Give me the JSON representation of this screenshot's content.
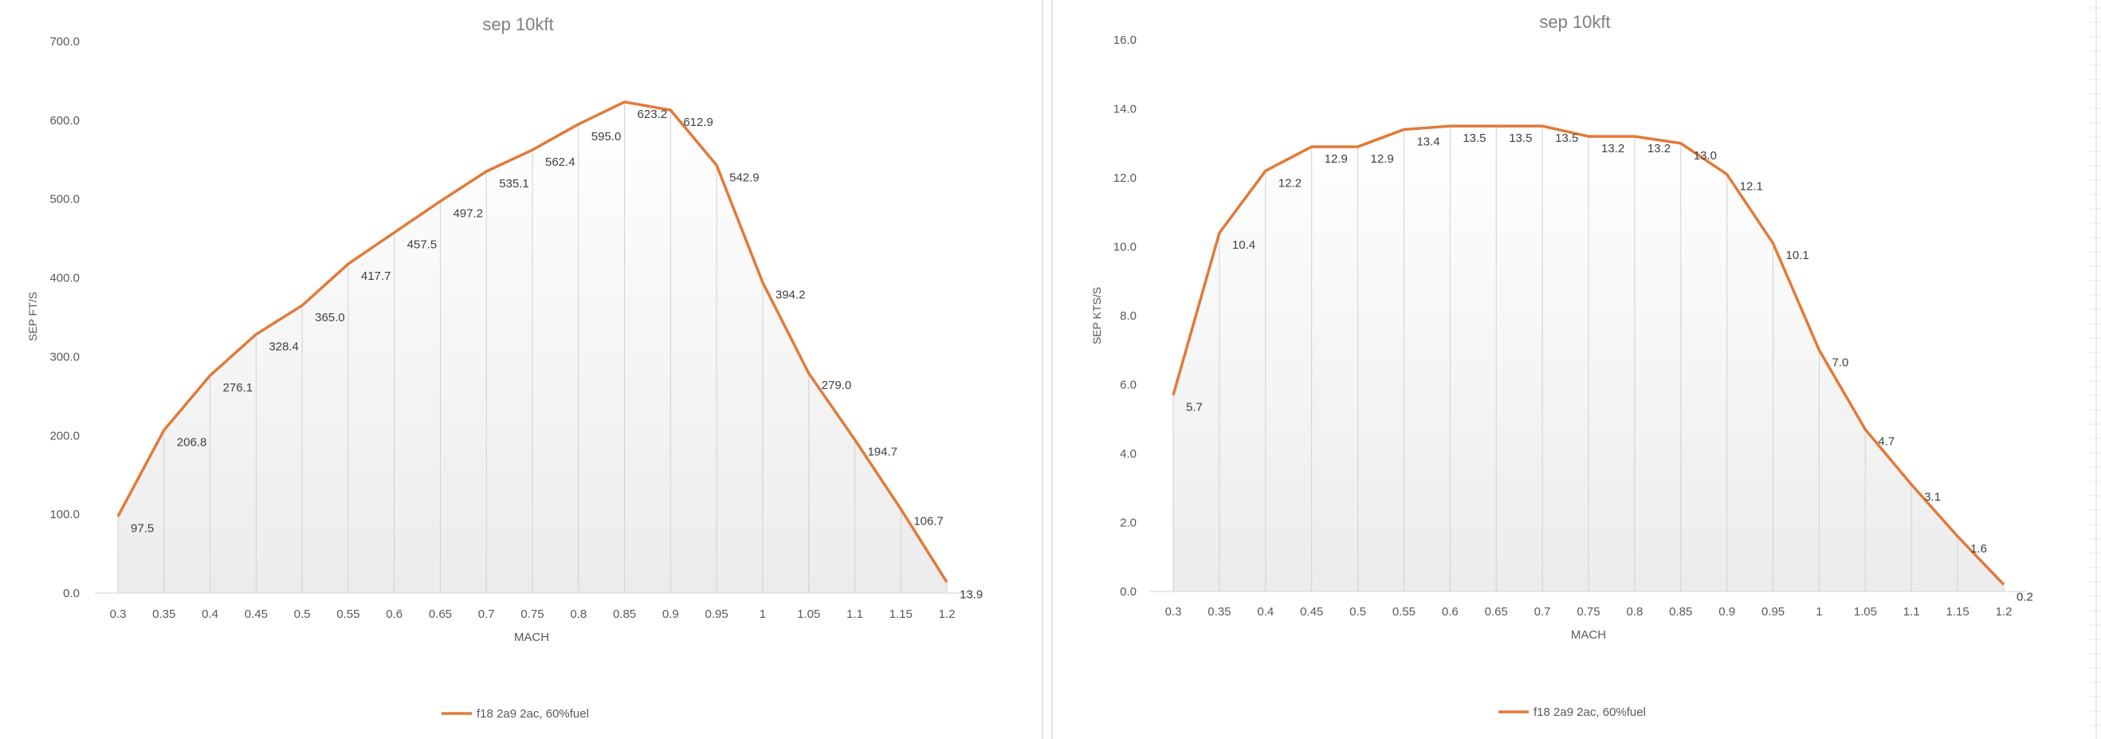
{
  "chart_data": [
    {
      "type": "area",
      "title": "sep 10kft",
      "xlabel": "MACH",
      "ylabel": "SEP FT/S",
      "ylim": [
        0,
        700
      ],
      "yticks": [
        "0.0",
        "100.0",
        "200.0",
        "300.0",
        "400.0",
        "500.0",
        "600.0",
        "700.0"
      ],
      "categories": [
        "0.3",
        "0.35",
        "0.4",
        "0.45",
        "0.5",
        "0.55",
        "0.6",
        "0.65",
        "0.7",
        "0.75",
        "0.8",
        "0.85",
        "0.9",
        "0.95",
        "1",
        "1.05",
        "1.1",
        "1.15",
        "1.2"
      ],
      "series": [
        {
          "name": "f18 2a9 2ac, 60%fuel",
          "color": "#E07B39",
          "values": [
            97.5,
            206.8,
            276.1,
            328.4,
            365.0,
            417.7,
            457.5,
            497.2,
            535.1,
            562.4,
            595.0,
            623.2,
            612.9,
            542.9,
            394.2,
            279.0,
            194.7,
            106.7,
            13.9
          ],
          "labels": [
            "97.5",
            "206.8",
            "276.1",
            "328.4",
            "365.0",
            "417.7",
            "457.5",
            "497.2",
            "535.1",
            "562.4",
            "595.0",
            "623.2",
            "612.9",
            "542.9",
            "394.2",
            "279.0",
            "194.7",
            "106.7",
            "13.9"
          ]
        }
      ],
      "legend": "bottom",
      "grid": false
    },
    {
      "type": "area",
      "title": "sep 10kft",
      "xlabel": "MACH",
      "ylabel": "SEP KTS/S",
      "ylim": [
        0,
        16
      ],
      "yticks": [
        "0.0",
        "2.0",
        "4.0",
        "6.0",
        "8.0",
        "10.0",
        "12.0",
        "14.0",
        "16.0"
      ],
      "categories": [
        "0.3",
        "0.35",
        "0.4",
        "0.45",
        "0.5",
        "0.55",
        "0.6",
        "0.65",
        "0.7",
        "0.75",
        "0.8",
        "0.85",
        "0.9",
        "0.95",
        "1",
        "1.05",
        "1.1",
        "1.15",
        "1.2"
      ],
      "series": [
        {
          "name": "f18 2a9 2ac, 60%fuel",
          "color": "#E07B39",
          "values": [
            5.7,
            10.4,
            12.2,
            12.9,
            12.9,
            13.4,
            13.5,
            13.5,
            13.5,
            13.2,
            13.2,
            13.0,
            12.1,
            10.1,
            7.0,
            4.7,
            3.1,
            1.6,
            0.2
          ],
          "labels": [
            "5.7",
            "10.4",
            "12.2",
            "12.9",
            "12.9",
            "13.4",
            "13.5",
            "13.5",
            "13.5",
            "13.2",
            "13.2",
            "13.0",
            "12.1",
            "10.1",
            "7.0",
            "4.7",
            "3.1",
            "1.6",
            "0.2"
          ]
        }
      ],
      "legend": "bottom",
      "grid": false
    }
  ]
}
